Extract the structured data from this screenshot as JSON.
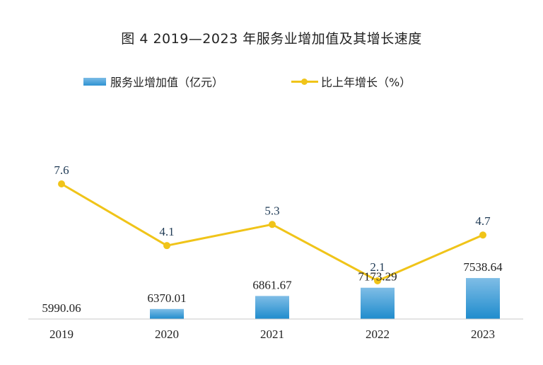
{
  "chart_data": {
    "type": "bar",
    "title": "图 4 2019—2023 年服务业增加值及其增长速度",
    "categories": [
      "2019",
      "2020",
      "2021",
      "2022",
      "2023"
    ],
    "series": [
      {
        "name": "服务业增加值（亿元）",
        "type": "bar",
        "color": "#3a9ad8",
        "values": [
          5990.06,
          6370.01,
          6861.67,
          7173.29,
          7538.64
        ],
        "labels": [
          "5990.06",
          "6370.01",
          "6861.67",
          "7173.29",
          "7538.64"
        ]
      },
      {
        "name": "比上年增长（%）",
        "type": "line",
        "color": "#f0c419",
        "values": [
          7.6,
          4.1,
          5.3,
          2.1,
          4.7
        ],
        "labels": [
          "7.6",
          "4.1",
          "5.3",
          "2.1",
          "4.7"
        ]
      }
    ],
    "xlabel": "",
    "ylabel": "",
    "legend": "top-center",
    "grid": false
  }
}
